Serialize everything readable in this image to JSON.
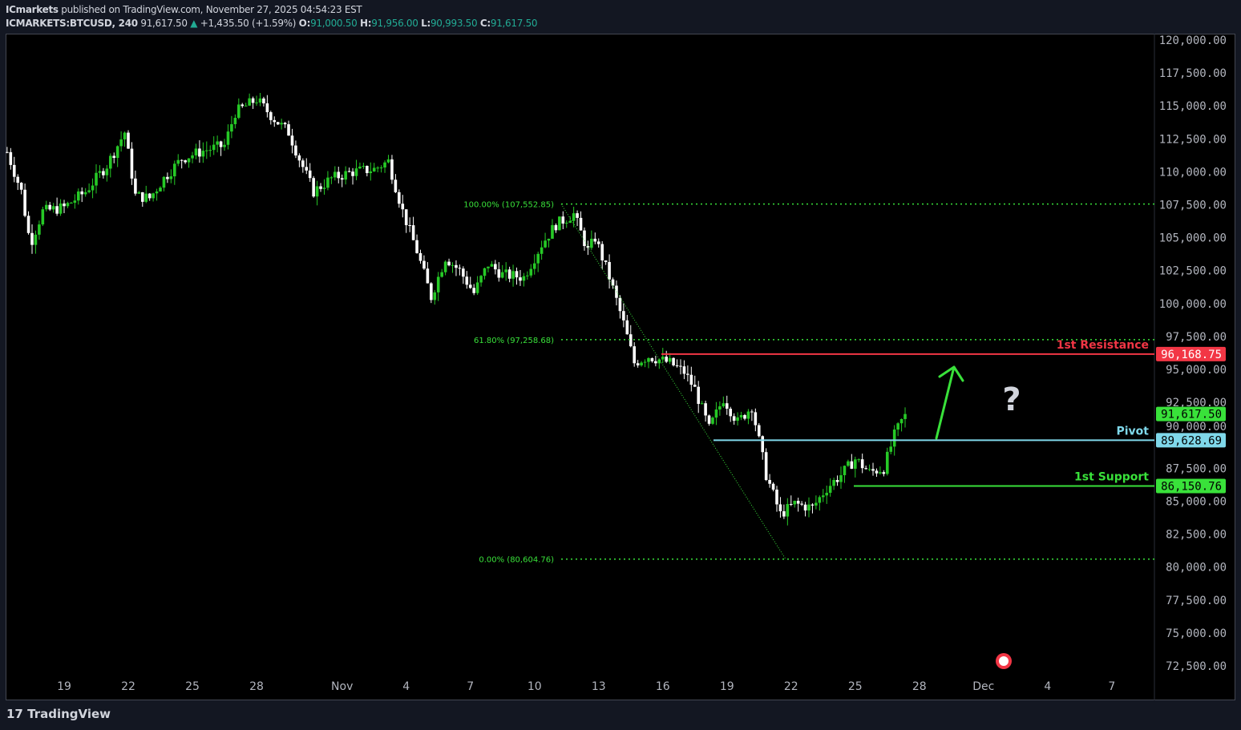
{
  "header": {
    "publisher": "ICmarkets",
    "published_text": "published on TradingView.com, November 27, 2025 04:54:23 EST",
    "symbol": "ICMARKETS:BTCUSD, 240",
    "last": "91,617.50",
    "change": "+1,435.50 (+1.59%)",
    "o_label": "O:",
    "o": "91,000.50",
    "h_label": "H:",
    "h": "91,956.00",
    "l_label": "L:",
    "l": "90,993.50",
    "c_label": "C:",
    "c": "91,617.50"
  },
  "footer": {
    "logo": "TradingView"
  },
  "colors": {
    "up": "#26c926",
    "down": "#ffffff",
    "resistance": "#f23645",
    "pivot": "#7fd8ea",
    "support": "#39e13a",
    "fib": "#39e13a",
    "axis_text": "#b2b5be"
  },
  "chart_data": {
    "type": "candlestick",
    "timeframe": "240",
    "ylim": [
      71000,
      121500
    ],
    "y_ticks": [
      "120,000.00",
      "117,500.00",
      "115,000.00",
      "112,500.00",
      "110,000.00",
      "107,500.00",
      "105,000.00",
      "102,500.00",
      "100,000.00",
      "97,500.00",
      "95,000.00",
      "92,500.00",
      "90,000.00",
      "87,500.00",
      "85,000.00",
      "82,500.00",
      "80,000.00",
      "77,500.00",
      "75,000.00",
      "72,500.00"
    ],
    "y_tick_values": [
      120000,
      117500,
      115000,
      112500,
      110000,
      107500,
      105000,
      102500,
      100000,
      97500,
      95000,
      92500,
      90000,
      87500,
      85000,
      82500,
      80000,
      77500,
      75000,
      72500
    ],
    "x_ticks": [
      {
        "label": "19",
        "date": "2025-10-19"
      },
      {
        "label": "22",
        "date": "2025-10-22"
      },
      {
        "label": "25",
        "date": "2025-10-25"
      },
      {
        "label": "28",
        "date": "2025-10-28"
      },
      {
        "label": "Nov",
        "date": "2025-11-01"
      },
      {
        "label": "4",
        "date": "2025-11-04"
      },
      {
        "label": "7",
        "date": "2025-11-07"
      },
      {
        "label": "10",
        "date": "2025-11-10"
      },
      {
        "label": "13",
        "date": "2025-11-13"
      },
      {
        "label": "16",
        "date": "2025-11-16"
      },
      {
        "label": "19",
        "date": "2025-11-19"
      },
      {
        "label": "22",
        "date": "2025-11-22"
      },
      {
        "label": "25",
        "date": "2025-11-25"
      },
      {
        "label": "28",
        "date": "2025-11-28"
      },
      {
        "label": "Dec",
        "date": "2025-12-01"
      },
      {
        "label": "4",
        "date": "2025-12-04"
      },
      {
        "label": "7",
        "date": "2025-12-07"
      }
    ],
    "approx_close_path": [
      [
        "2025-10-16T08:00",
        111500
      ],
      [
        "2025-10-17T00:00",
        108500
      ],
      [
        "2025-10-17T10:00",
        104500
      ],
      [
        "2025-10-18T00:00",
        107000
      ],
      [
        "2025-10-19T00:00",
        107300
      ],
      [
        "2025-10-20T00:00",
        108500
      ],
      [
        "2025-10-21T00:00",
        110500
      ],
      [
        "2025-10-21T20:00",
        113000
      ],
      [
        "2025-10-22T08:00",
        108200
      ],
      [
        "2025-10-23T00:00",
        108000
      ],
      [
        "2025-10-23T16:00",
        109500
      ],
      [
        "2025-10-24T12:00",
        111000
      ],
      [
        "2025-10-25T12:00",
        111600
      ],
      [
        "2025-10-26T12:00",
        112000
      ],
      [
        "2025-10-27T00:00",
        114500
      ],
      [
        "2025-10-28T00:00",
        115500
      ],
      [
        "2025-10-28T20:00",
        114000
      ],
      [
        "2025-10-29T12:00",
        113000
      ],
      [
        "2025-10-30T00:00",
        111000
      ],
      [
        "2025-10-30T16:00",
        108500
      ],
      [
        "2025-10-31T12:00",
        109500
      ],
      [
        "2025-11-01T12:00",
        110000
      ],
      [
        "2025-11-02T12:00",
        110200
      ],
      [
        "2025-11-03T04:00",
        110800
      ],
      [
        "2025-11-03T20:00",
        107000
      ],
      [
        "2025-11-04T12:00",
        104000
      ],
      [
        "2025-11-05T04:00",
        100500
      ],
      [
        "2025-11-05T20:00",
        103500
      ],
      [
        "2025-11-06T12:00",
        102500
      ],
      [
        "2025-11-07T04:00",
        100800
      ],
      [
        "2025-11-07T20:00",
        103000
      ],
      [
        "2025-11-08T12:00",
        102200
      ],
      [
        "2025-11-09T12:00",
        102000
      ],
      [
        "2025-11-10T08:00",
        104500
      ],
      [
        "2025-11-11T00:00",
        106000
      ],
      [
        "2025-11-11T20:00",
        106800
      ],
      [
        "2025-11-12T12:00",
        104000
      ],
      [
        "2025-11-12T20:00",
        105000
      ],
      [
        "2025-11-13T12:00",
        102000
      ],
      [
        "2025-11-14T04:00",
        98500
      ],
      [
        "2025-11-14T16:00",
        95500
      ],
      [
        "2025-11-15T08:00",
        96000
      ],
      [
        "2025-11-16T08:00",
        95500
      ],
      [
        "2025-11-17T00:00",
        94800
      ],
      [
        "2025-11-17T12:00",
        93500
      ],
      [
        "2025-11-18T04:00",
        90500
      ],
      [
        "2025-11-18T20:00",
        92800
      ],
      [
        "2025-11-19T12:00",
        91000
      ],
      [
        "2025-11-20T04:00",
        92200
      ],
      [
        "2025-11-20T20:00",
        87000
      ],
      [
        "2025-11-21T12:00",
        84000
      ],
      [
        "2025-11-22T04:00",
        84800
      ],
      [
        "2025-11-23T00:00",
        84500
      ],
      [
        "2025-11-23T16:00",
        86000
      ],
      [
        "2025-11-24T08:00",
        87000
      ],
      [
        "2025-11-25T00:00",
        88200
      ],
      [
        "2025-11-25T16:00",
        87200
      ],
      [
        "2025-11-26T08:00",
        87500
      ],
      [
        "2025-11-26T20:00",
        90000
      ],
      [
        "2025-11-27T08:00",
        91617.5
      ]
    ],
    "fibonacci": [
      {
        "label": "100.00% (107,552.85)",
        "value": 107552.85
      },
      {
        "label": "61.80% (97,258.68)",
        "value": 97258.68
      },
      {
        "label": "0.00% (80,604.76)",
        "value": 80604.76
      }
    ],
    "levels": [
      {
        "label": "1st Resistance",
        "value": 96168.75,
        "value_label": "96,168.75",
        "color": "#f23645"
      },
      {
        "label": "Pivot",
        "value": 89628.69,
        "value_label": "89,628.69",
        "color": "#7fd8ea"
      },
      {
        "label": "1st Support",
        "value": 86150.76,
        "value_label": "86,150.76",
        "color": "#39e13a"
      }
    ],
    "last_price_label": "91,617.50",
    "annotations": {
      "question_mark": "?",
      "arrow": "up, toward 1st Resistance"
    }
  }
}
